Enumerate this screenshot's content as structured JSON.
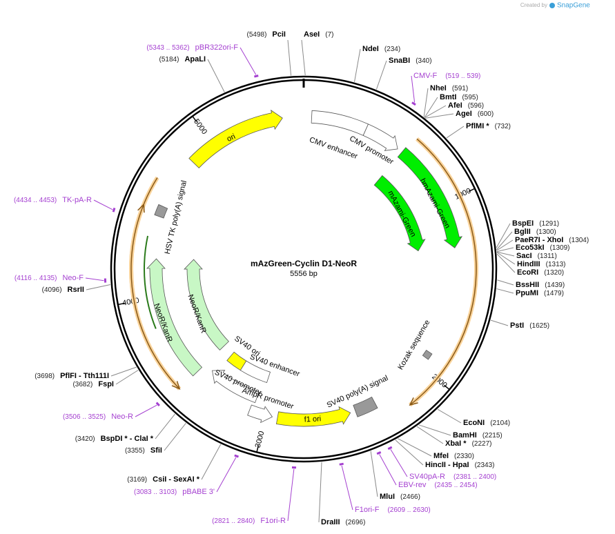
{
  "header": {
    "created": "Created by",
    "brand": "SnapGene"
  },
  "plasmid": {
    "name": "mAzGreen-Cyclin D1-NeoR",
    "size": "5556 bp",
    "ticks": [
      1000,
      2000,
      3000,
      4000,
      5000
    ]
  },
  "sites": [
    {
      "name": "PciI",
      "pos": "(5498)"
    },
    {
      "name": "AseI",
      "pos": "(7)"
    },
    {
      "name": "NdeI",
      "pos": "(234)"
    },
    {
      "name": "SnaBI",
      "pos": "(340)"
    },
    {
      "name": "NheI",
      "pos": "(591)"
    },
    {
      "name": "BmtI",
      "pos": "(595)"
    },
    {
      "name": "AfeI",
      "pos": "(596)"
    },
    {
      "name": "AgeI",
      "pos": "(600)"
    },
    {
      "name": "PflMI *",
      "pos": "(732)"
    },
    {
      "name": "BspEI",
      "pos": "(1291)"
    },
    {
      "name": "BglII",
      "pos": "(1300)"
    },
    {
      "name": "PaeR7I  -  XhoI",
      "pos": "(1304)"
    },
    {
      "name": "Eco53kI",
      "pos": "(1309)"
    },
    {
      "name": "SacI",
      "pos": "(1311)"
    },
    {
      "name": "HindIII",
      "pos": "(1313)"
    },
    {
      "name": "EcoRI",
      "pos": "(1320)"
    },
    {
      "name": "BssHII",
      "pos": "(1439)"
    },
    {
      "name": "PpuMI",
      "pos": "(1479)"
    },
    {
      "name": "PstI",
      "pos": "(1625)"
    },
    {
      "name": "EcoNI",
      "pos": "(2104)"
    },
    {
      "name": "BamHI",
      "pos": "(2215)"
    },
    {
      "name": "XbaI *",
      "pos": "(2227)"
    },
    {
      "name": "MfeI",
      "pos": "(2330)"
    },
    {
      "name": "HincII  -  HpaI",
      "pos": "(2343)"
    },
    {
      "name": "MluI",
      "pos": "(2466)"
    },
    {
      "name": "DraIII",
      "pos": "(2696)"
    },
    {
      "name": "ApaLI",
      "pos": "(5184)"
    },
    {
      "name": "RsrII",
      "pos": "(4096)"
    },
    {
      "name": "PflFI  -  Tth111I",
      "pos": "(3698)"
    },
    {
      "name": "FspI",
      "pos": "(3682)"
    },
    {
      "name": "BspDI *  -  ClaI *",
      "pos": "(3420)"
    },
    {
      "name": "SfiI",
      "pos": "(3355)"
    },
    {
      "name": "CsiI  -  SexAI *",
      "pos": "(3169)"
    }
  ],
  "primers": [
    {
      "name": "pBR322ori-F",
      "range": "(5343 .. 5362)"
    },
    {
      "name": "CMV-F",
      "range": "(519 .. 539)"
    },
    {
      "name": "TK-pA-R",
      "range": "(4434 .. 4453)"
    },
    {
      "name": "Neo-F",
      "range": "(4116 .. 4135)"
    },
    {
      "name": "Neo-R",
      "range": "(3506 .. 3525)"
    },
    {
      "name": "pBABE 3'",
      "range": "(3083 .. 3103)"
    },
    {
      "name": "F1ori-R",
      "range": "(2821 .. 2840)"
    },
    {
      "name": "SV40pA-R",
      "range": "(2381 .. 2400)"
    },
    {
      "name": "EBV-rev",
      "range": "(2435 .. 2454)"
    },
    {
      "name": "F1ori-F",
      "range": "(2609 .. 2630)"
    }
  ],
  "features": [
    {
      "label": "ori"
    },
    {
      "label": "CMV enhancer"
    },
    {
      "label": "CMV promoter"
    },
    {
      "label": "hmAzami-Green"
    },
    {
      "label": "mAzami-Green"
    },
    {
      "label": "Kozak sequence"
    },
    {
      "label": "SV40 poly(A) signal"
    },
    {
      "label": "f1 ori"
    },
    {
      "label": "AmpR promoter"
    },
    {
      "label": "SV40 promoter"
    },
    {
      "label": "SV40 ori"
    },
    {
      "label": "SV40 enhancer"
    },
    {
      "label": "NeoR/KanR"
    },
    {
      "label": "NeoR/KanR"
    },
    {
      "label": "HSV TK poly(A) signal"
    }
  ]
}
